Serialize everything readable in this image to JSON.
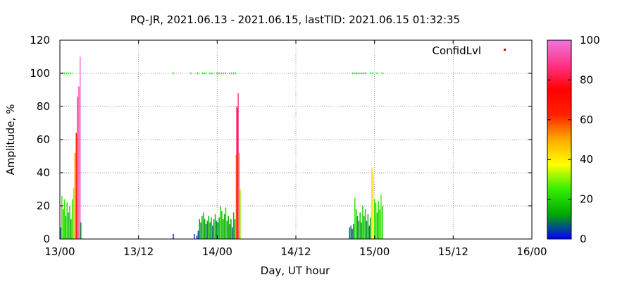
{
  "chart_data": {
    "type": "bar",
    "title": "PQ-JR, 2021.06.13 - 2021.06.15, lastTID: 2021.06.15 01:32:35",
    "xlabel": "Day, UT hour",
    "ylabel": "Amplitude, %",
    "xlim": [
      0,
      72
    ],
    "ylim": [
      0,
      120
    ],
    "x_ticks": [
      {
        "value": 0,
        "label": "13/00"
      },
      {
        "value": 12,
        "label": "13/12"
      },
      {
        "value": 24,
        "label": "14/00"
      },
      {
        "value": 36,
        "label": "14/12"
      },
      {
        "value": 48,
        "label": "15/00"
      },
      {
        "value": 60,
        "label": "15/12"
      },
      {
        "value": 72,
        "label": "16/00"
      }
    ],
    "y_ticks": [
      0,
      20,
      40,
      60,
      80,
      100,
      120
    ],
    "grid": true,
    "legend": {
      "position": "top-right",
      "label": "ConfidLvl",
      "color": "#cc0000"
    },
    "colorbar": {
      "range": [
        0,
        100
      ],
      "ticks": [
        0,
        20,
        40,
        60,
        80,
        100
      ],
      "stops": [
        "#0000ff",
        "#00aa00",
        "#33ee00",
        "#ffff00",
        "#ffaa00",
        "#ff2200",
        "#ff0000",
        "#ff3388",
        "#ee77dd"
      ]
    },
    "series": [
      {
        "name": "Amplitude",
        "points": [
          [
            0.1,
            7
          ],
          [
            0.3,
            26
          ],
          [
            0.5,
            18
          ],
          [
            0.7,
            24
          ],
          [
            0.9,
            14
          ],
          [
            1.1,
            22
          ],
          [
            1.3,
            16
          ],
          [
            1.5,
            20
          ],
          [
            1.7,
            12
          ],
          [
            1.9,
            24
          ],
          [
            2.1,
            31
          ],
          [
            2.3,
            52
          ],
          [
            2.5,
            64
          ],
          [
            2.7,
            86
          ],
          [
            2.9,
            92
          ],
          [
            3.1,
            110
          ],
          [
            3.2,
            10
          ],
          [
            17.3,
            3
          ],
          [
            20.5,
            3
          ],
          [
            20.9,
            2
          ],
          [
            21.1,
            5
          ],
          [
            21.3,
            12
          ],
          [
            21.5,
            10
          ],
          [
            21.7,
            14
          ],
          [
            21.9,
            16
          ],
          [
            22.1,
            12
          ],
          [
            22.3,
            9
          ],
          [
            22.5,
            11
          ],
          [
            22.7,
            14
          ],
          [
            22.9,
            10
          ],
          [
            23.1,
            13
          ],
          [
            23.3,
            8
          ],
          [
            23.5,
            12
          ],
          [
            23.7,
            15
          ],
          [
            23.9,
            11
          ],
          [
            24.1,
            10
          ],
          [
            24.3,
            13
          ],
          [
            24.5,
            20
          ],
          [
            24.7,
            17
          ],
          [
            24.9,
            12
          ],
          [
            25.1,
            15
          ],
          [
            25.3,
            19
          ],
          [
            25.5,
            11
          ],
          [
            25.7,
            14
          ],
          [
            25.9,
            9
          ],
          [
            26.1,
            12
          ],
          [
            26.3,
            7
          ],
          [
            26.5,
            16
          ],
          [
            26.7,
            12
          ],
          [
            26.9,
            51
          ],
          [
            27.0,
            80
          ],
          [
            27.1,
            79
          ],
          [
            27.2,
            88
          ],
          [
            27.35,
            52
          ],
          [
            27.5,
            30
          ],
          [
            44.2,
            7
          ],
          [
            44.4,
            8
          ],
          [
            44.6,
            6
          ],
          [
            44.8,
            9
          ],
          [
            45.0,
            25
          ],
          [
            45.2,
            18
          ],
          [
            45.4,
            14
          ],
          [
            45.6,
            11
          ],
          [
            45.8,
            16
          ],
          [
            46.0,
            10
          ],
          [
            46.2,
            20
          ],
          [
            46.4,
            14
          ],
          [
            46.6,
            18
          ],
          [
            46.8,
            11
          ],
          [
            47.0,
            15
          ],
          [
            47.2,
            8
          ],
          [
            47.4,
            13
          ],
          [
            47.6,
            43
          ],
          [
            47.8,
            40
          ],
          [
            48.0,
            24
          ],
          [
            48.2,
            22
          ],
          [
            48.4,
            16
          ],
          [
            48.6,
            23
          ],
          [
            48.8,
            18
          ],
          [
            49.0,
            27
          ],
          [
            49.2,
            20
          ]
        ]
      },
      {
        "name": "ConfidLvl",
        "values": 100,
        "x_ranges": [
          [
            0.3,
            2.0
          ],
          [
            17.2,
            17.4
          ],
          [
            19.9,
            20.1
          ],
          [
            20.9,
            21.3
          ],
          [
            21.7,
            22.4
          ],
          [
            22.8,
            23.5
          ],
          [
            23.9,
            25.5
          ],
          [
            25.8,
            26.9
          ],
          [
            44.6,
            46.8
          ],
          [
            47.3,
            47.9
          ],
          [
            48.3,
            48.6
          ],
          [
            49.1,
            49.3
          ]
        ]
      }
    ]
  }
}
